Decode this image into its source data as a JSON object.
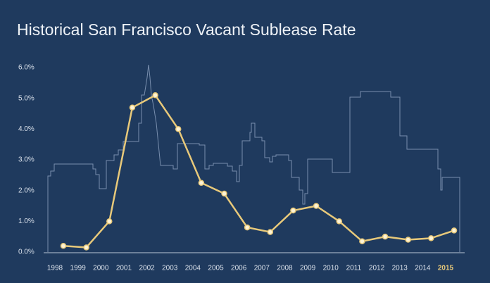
{
  "chart_data": {
    "type": "line",
    "title": "Historical San Francisco Vacant Sublease Rate",
    "categories": [
      "1998",
      "1999",
      "2000",
      "2001",
      "2002",
      "2003",
      "2004",
      "2005",
      "2006",
      "2007",
      "2008",
      "2009",
      "2010",
      "2011",
      "2012",
      "2013",
      "2014",
      "2015"
    ],
    "values": [
      0.2,
      0.15,
      1.0,
      4.7,
      5.1,
      4.0,
      2.25,
      1.9,
      0.8,
      0.65,
      1.35,
      1.5,
      1.0,
      0.35,
      0.5,
      0.4,
      0.45,
      0.7
    ],
    "color": "#e8c97a",
    "ylim": [
      0,
      6
    ],
    "yticks": [
      {
        "value": 0,
        "label": "0.0%"
      },
      {
        "value": 1,
        "label": "1.0%"
      },
      {
        "value": 2,
        "label": "2.0%"
      },
      {
        "value": 3,
        "label": "3.0%"
      },
      {
        "value": 4,
        "label": "4.0%"
      },
      {
        "value": 5,
        "label": "5.0%"
      },
      {
        "value": 6,
        "label": "6.0%"
      }
    ]
  }
}
